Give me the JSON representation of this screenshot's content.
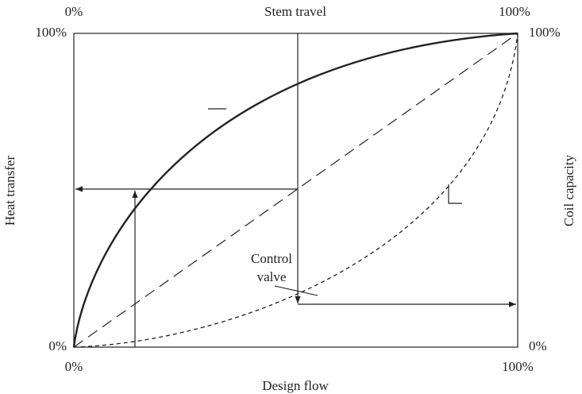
{
  "diagram": {
    "top_axis": {
      "title": "Stem travel",
      "start": "0%",
      "end": "100%"
    },
    "bottom_axis": {
      "title": "Design flow",
      "start": "0%",
      "end": "100%"
    },
    "left_axis": {
      "title": "Heat transfer",
      "start": "0%",
      "end": "100%"
    },
    "right_axis": {
      "title": "Coil capacity",
      "start": "0%",
      "end": "100%"
    },
    "annotation": [
      "Control",
      "valve"
    ]
  }
}
